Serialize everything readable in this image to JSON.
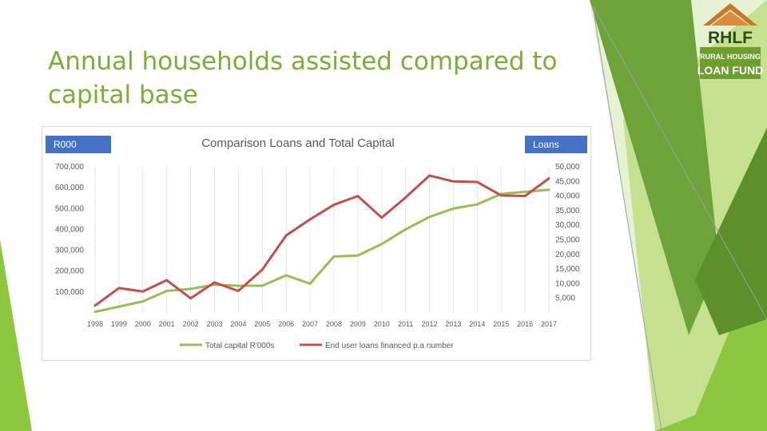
{
  "slide": {
    "title_line1": "Annual households assisted compared to",
    "title_line2": "capital base"
  },
  "logo": {
    "text": "RHLF",
    "line1": "RURAL HOUSING",
    "line2": "LOAN FUND",
    "colors": {
      "roof": "#c8772d",
      "green": "#6e9e2e",
      "dark": "#2b4d14"
    }
  },
  "colors": {
    "accent_green": "#7cac3a",
    "capital": "#9bbb59",
    "loans": "#c0504d",
    "tag": "#4472c4"
  },
  "chart_data": {
    "type": "line",
    "title": "Comparison Loans and Total Capital",
    "left_axis_tag": "R000",
    "right_axis_tag": "Loans",
    "categories": [
      "1998",
      "1999",
      "2000",
      "2001",
      "2002",
      "2003",
      "2004",
      "2005",
      "2006",
      "2007",
      "2008",
      "2009",
      "2010",
      "2011",
      "2012",
      "2013",
      "2014",
      "2015",
      "2016",
      "2017"
    ],
    "left_axis": {
      "min": 0,
      "max": 700000,
      "ticks": [
        "100,000",
        "200,000",
        "300,000",
        "400,000",
        "500,000",
        "600,000",
        "700,000"
      ],
      "tick_values": [
        100000,
        200000,
        300000,
        400000,
        500000,
        600000,
        700000
      ]
    },
    "right_axis": {
      "min": 0,
      "max": 50000,
      "ticks": [
        "5,000",
        "10,000",
        "15,000",
        "20,000",
        "25,000",
        "30,000",
        "35,000",
        "40,000",
        "45,000",
        "50,000"
      ],
      "tick_values": [
        5000,
        10000,
        15000,
        20000,
        25000,
        30000,
        35000,
        40000,
        45000,
        50000
      ]
    },
    "series": [
      {
        "name": "Total capital R'000s",
        "axis": "left",
        "color": "#9bbb59",
        "values": [
          5000,
          30000,
          55000,
          105000,
          115000,
          135000,
          130000,
          130000,
          180000,
          140000,
          270000,
          275000,
          330000,
          400000,
          460000,
          500000,
          520000,
          570000,
          580000,
          590000
        ]
      },
      {
        "name": "End user loans financed p.a number",
        "axis": "right",
        "color": "#c0504d",
        "values": [
          2500,
          8500,
          7300,
          11200,
          5000,
          10400,
          7500,
          14800,
          26500,
          32000,
          37000,
          40000,
          32600,
          39500,
          47000,
          45000,
          44800,
          40200,
          40000,
          46000
        ]
      }
    ],
    "legend_position": "bottom",
    "grid": "vertical"
  }
}
